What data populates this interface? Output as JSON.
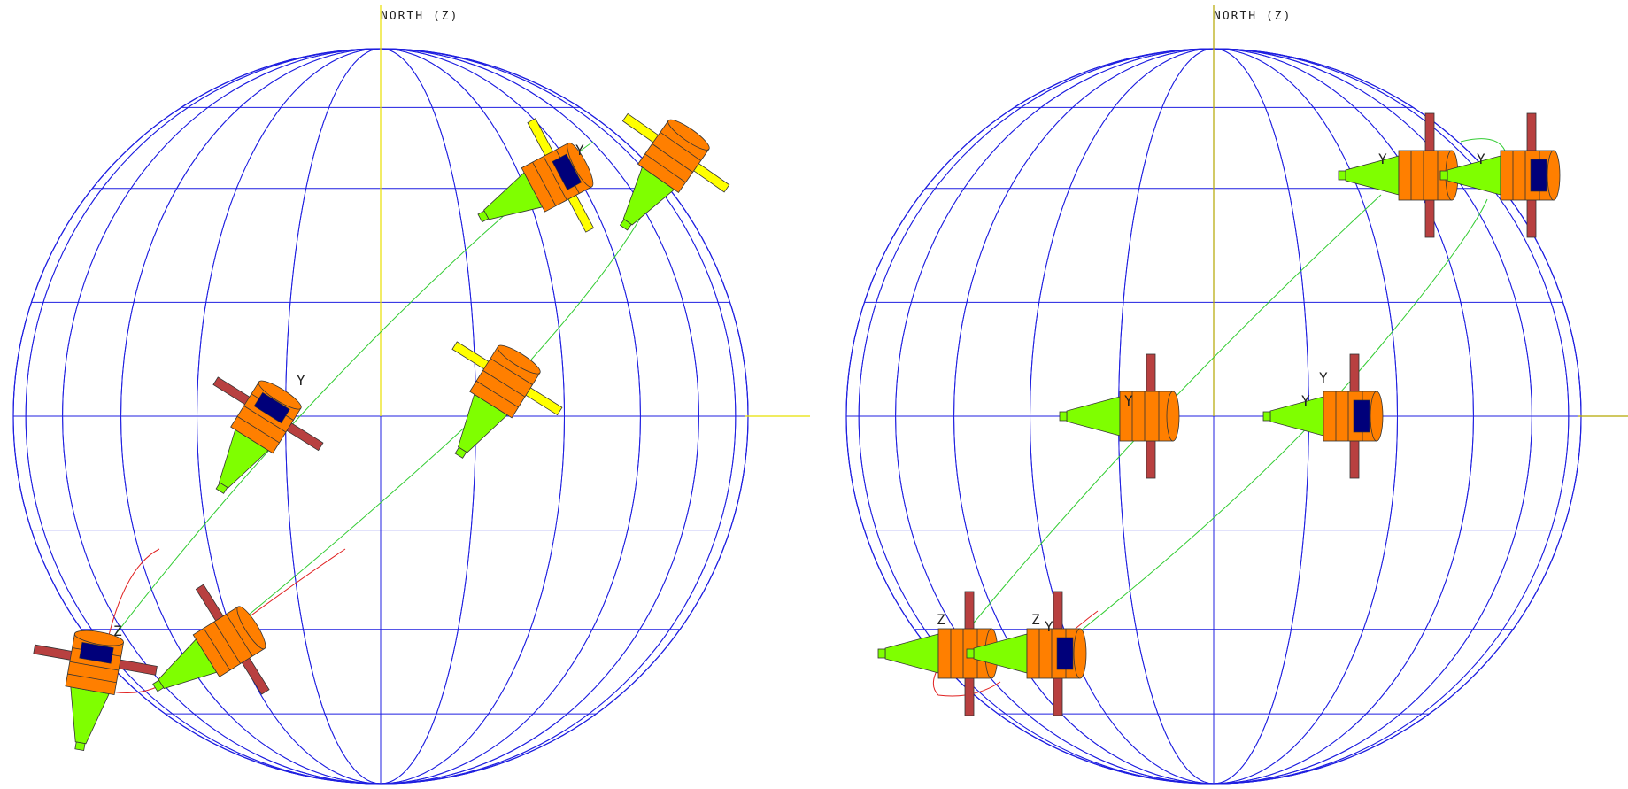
{
  "panels": [
    {
      "id": "left",
      "axis_label": "NORTH (Z)",
      "spacecraft_labels": [
        {
          "text": "Y"
        },
        {
          "text": "Y"
        },
        {
          "text": "Z"
        }
      ]
    },
    {
      "id": "right",
      "axis_label": "NORTH (Z)",
      "spacecraft_labels": [
        {
          "text": "Y"
        },
        {
          "text": "Y"
        },
        {
          "text": "Y"
        },
        {
          "text": "Y"
        },
        {
          "text": "Y"
        },
        {
          "text": "Z"
        },
        {
          "text": "Z"
        },
        {
          "text": "Y"
        }
      ]
    }
  ],
  "colors": {
    "grid": "#1f1fe0",
    "axis": "#e8e000",
    "trajectory_green": "#33cc33",
    "trajectory_red": "#e02020",
    "body_orange": "#ff7f00",
    "nozzle_green": "#7fff00",
    "panel_yellow": "#ffff00",
    "panel_red": "#b84040",
    "band_navy": "#00007a"
  }
}
